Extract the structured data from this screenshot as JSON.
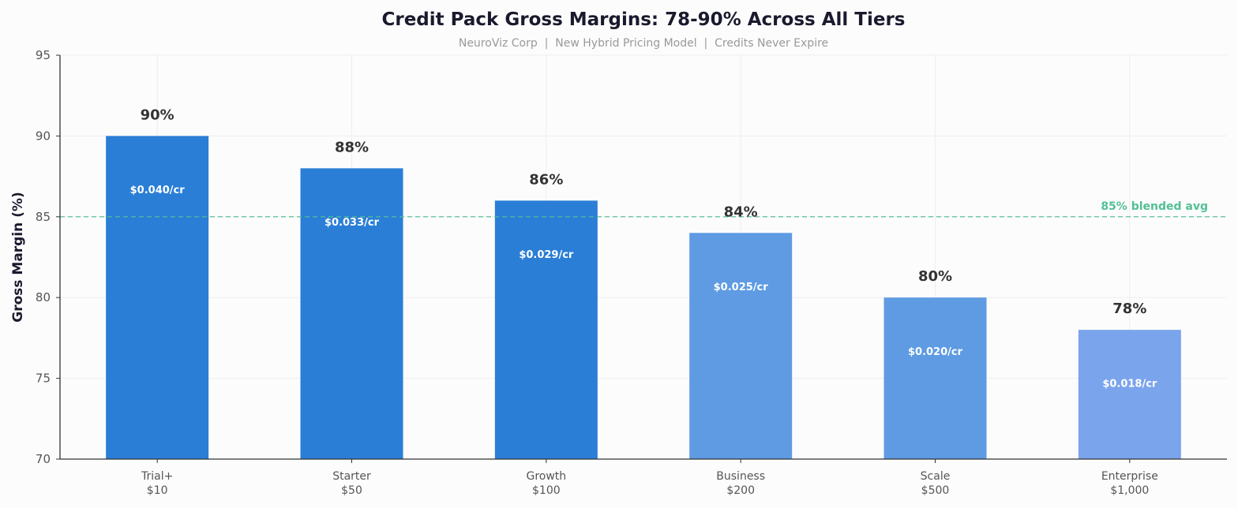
{
  "chart_data": {
    "type": "bar",
    "title": "Credit Pack Gross Margins: 78-90% Across All Tiers",
    "subtitle": "NeuroViz Corp  |  New Hybrid Pricing Model  |  Credits Never Expire",
    "xlabel": "",
    "ylabel": "Gross Margin (%)",
    "ylim": [
      70,
      95
    ],
    "yticks": [
      70,
      75,
      80,
      85,
      90,
      95
    ],
    "grid": true,
    "categories": [
      {
        "name": "Trial+",
        "price": "$10"
      },
      {
        "name": "Starter",
        "price": "$50"
      },
      {
        "name": "Growth",
        "price": "$100"
      },
      {
        "name": "Business",
        "price": "$200"
      },
      {
        "name": "Scale",
        "price": "$500"
      },
      {
        "name": "Enterprise",
        "price": "$1,000"
      }
    ],
    "values": [
      90,
      88,
      86,
      84,
      80,
      78
    ],
    "value_labels": [
      "90%",
      "88%",
      "86%",
      "84%",
      "80%",
      "78%"
    ],
    "per_credit_labels": [
      "$0.040/cr",
      "$0.033/cr",
      "$0.029/cr",
      "$0.025/cr",
      "$0.020/cr",
      "$0.018/cr"
    ],
    "bar_colors": [
      "#2a7ed6",
      "#2a7ed6",
      "#2a7ed6",
      "#5e9be3",
      "#5e9be3",
      "#7aa4ec"
    ],
    "reference_line": {
      "value": 85,
      "label": "85% blended avg",
      "color": "#52c094",
      "style": "dashed"
    }
  }
}
